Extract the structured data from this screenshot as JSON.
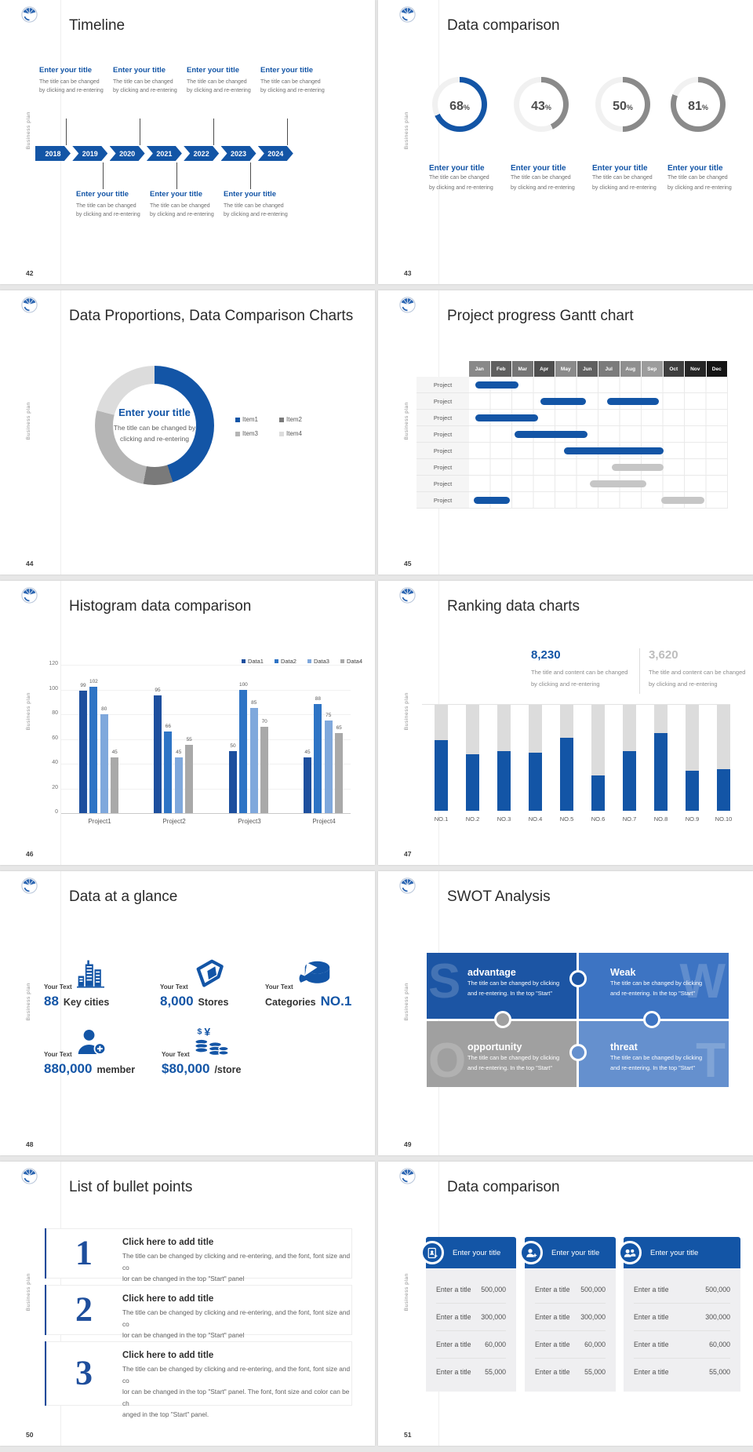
{
  "colors": {
    "brand_blue": "#1355a6",
    "gray_arc": "#8a8a8a",
    "donut_track": "#f1f1f1",
    "gantt_gray_bar": "#c6c6c6",
    "ranking_track": "#dcdcdc",
    "stat_gray": "#bdbdbd"
  },
  "common": {
    "sidebar": "Business plan",
    "logo": "brand-logo"
  },
  "slides": {
    "s42": {
      "number": "42",
      "title": "Timeline",
      "years": [
        "2018",
        "2019",
        "2020",
        "2021",
        "2022",
        "2023",
        "2024"
      ],
      "blocks_top": [
        {
          "title": "Enter your title",
          "line1": "The title can be changed",
          "line2": "by clicking and re-entering"
        },
        {
          "title": "Enter your title",
          "line1": "The title can be changed",
          "line2": "by clicking and re-entering"
        },
        {
          "title": "Enter your title",
          "line1": "The title can be changed",
          "line2": "by clicking and re-entering"
        },
        {
          "title": "Enter your title",
          "line1": "The title can be changed",
          "line2": "by clicking and re-entering"
        }
      ],
      "blocks_bottom": [
        {
          "title": "Enter your title",
          "line1": "The title can be changed",
          "line2": "by clicking and re-entering"
        },
        {
          "title": "Enter your title",
          "line1": "The title can be changed",
          "line2": "by clicking and re-entering"
        },
        {
          "title": "Enter your title",
          "line1": "The title can be changed",
          "line2": "by clicking and re-entering"
        }
      ]
    },
    "s43": {
      "number": "43",
      "title": "Data comparison",
      "items": [
        {
          "pct": 68,
          "unit": "%",
          "color": "#1355a6",
          "title": "Enter your title",
          "line1": "The title can be changed",
          "line2": "by clicking and re-entering"
        },
        {
          "pct": 43,
          "unit": "%",
          "color": "#8a8a8a",
          "title": "Enter your title",
          "line1": "The title can be changed",
          "line2": "by clicking and re-entering"
        },
        {
          "pct": 50,
          "unit": "%",
          "color": "#8a8a8a",
          "title": "Enter your title",
          "line1": "The title can be changed",
          "line2": "by clicking and re-entering"
        },
        {
          "pct": 81,
          "unit": "%",
          "color": "#8a8a8a",
          "title": "Enter your title",
          "line1": "The title can be changed",
          "line2": "by clicking and re-entering"
        }
      ]
    },
    "s44": {
      "number": "44",
      "title": "Data Proportions, Data Comparison Charts",
      "center_title": "Enter your title",
      "center_line1": "The title can be changed by",
      "center_line2": "clicking and re-entering",
      "segments": [
        {
          "label": "Item1",
          "value": 45,
          "color": "#1355a6"
        },
        {
          "label": "Item2",
          "value": 8,
          "color": "#7a7a7a"
        },
        {
          "label": "Item3",
          "value": 26,
          "color": "#b5b5b5"
        },
        {
          "label": "Item4",
          "value": 21,
          "color": "#dcdcdc"
        }
      ]
    },
    "s45": {
      "number": "45",
      "title": "Project progress Gantt chart",
      "months": [
        "Jan",
        "Feb",
        "Mar",
        "Apr",
        "May",
        "Jun",
        "Jul",
        "Aug",
        "Sep",
        "Oct",
        "Nov",
        "Dec"
      ],
      "header_colors": [
        "#898989",
        "#5f5f5f",
        "#757575",
        "#4f4f4f",
        "#8a8a8a",
        "#606060",
        "#7b7b7b",
        "#8f8f8f",
        "#9c9c9c",
        "#3f3f3f",
        "#262626",
        "#151515"
      ],
      "row_label": "Project",
      "rows": [
        {
          "bars": [
            {
              "s": 0.3,
              "e": 2.3,
              "c": "b"
            }
          ]
        },
        {
          "bars": [
            {
              "s": 3.3,
              "e": 5.4,
              "c": "b"
            },
            {
              "s": 6.4,
              "e": 8.8,
              "c": "b"
            }
          ]
        },
        {
          "bars": [
            {
              "s": 0.3,
              "e": 3.2,
              "c": "b"
            }
          ]
        },
        {
          "bars": [
            {
              "s": 2.1,
              "e": 5.5,
              "c": "b"
            }
          ]
        },
        {
          "bars": [
            {
              "s": 4.4,
              "e": 9.0,
              "c": "b"
            }
          ]
        },
        {
          "bars": [
            {
              "s": 6.6,
              "e": 9.0,
              "c": "g"
            }
          ]
        },
        {
          "bars": [
            {
              "s": 5.6,
              "e": 8.2,
              "c": "g"
            }
          ]
        },
        {
          "bars": [
            {
              "s": 0.2,
              "e": 1.9,
              "c": "b"
            },
            {
              "s": 8.9,
              "e": 10.9,
              "c": "g"
            }
          ]
        }
      ]
    },
    "s46": {
      "number": "46",
      "title": "Histogram data comparison",
      "legend": [
        "Data1",
        "Data2",
        "Data3",
        "Data4"
      ],
      "series_colors": [
        "#1d4f9e",
        "#2e74c5",
        "#7fa8dc",
        "#a9a9a9"
      ],
      "categories": [
        "Project1",
        "Project2",
        "Project3",
        "Project4"
      ],
      "values": [
        [
          99,
          102,
          80,
          45
        ],
        [
          95,
          66,
          45,
          55
        ],
        [
          50,
          100,
          85,
          70
        ],
        [
          45,
          88,
          75,
          65
        ]
      ],
      "yticks": [
        0,
        20,
        40,
        60,
        80,
        100,
        120
      ],
      "ymax": 120
    },
    "s47": {
      "number": "47",
      "title": "Ranking data charts",
      "stat1": {
        "value": "8,230",
        "line1": "The title and content can be changed",
        "line2": "by clicking and re-entering"
      },
      "stat2": {
        "value": "3,620",
        "line1": "The title and content can be changed",
        "line2": "by clicking and re-entering"
      },
      "bars": [
        {
          "label": "NO.1",
          "fill": 0.67
        },
        {
          "label": "NO.2",
          "fill": 0.53
        },
        {
          "label": "NO.3",
          "fill": 0.56
        },
        {
          "label": "NO.4",
          "fill": 0.55
        },
        {
          "label": "NO.5",
          "fill": 0.69
        },
        {
          "label": "NO.6",
          "fill": 0.33
        },
        {
          "label": "NO.7",
          "fill": 0.56
        },
        {
          "label": "NO.8",
          "fill": 0.73
        },
        {
          "label": "NO.9",
          "fill": 0.38
        },
        {
          "label": "NO.10",
          "fill": 0.39
        }
      ]
    },
    "s48": {
      "number": "48",
      "title": "Data at a glance",
      "items": [
        {
          "prefix": "Your Text",
          "value": "88",
          "label": "Key cities",
          "icon": "city-buildings-icon"
        },
        {
          "prefix": "Your Text",
          "value": "8,000",
          "label": "Stores",
          "icon": "store-icon"
        },
        {
          "prefix": "Your Text",
          "label": "Categories",
          "value": "NO.1",
          "icon": "pie-cylinder-icon"
        },
        {
          "prefix": "Your Text",
          "value": "880,000",
          "label": "member",
          "icon": "add-member-icon"
        },
        {
          "prefix": "Your Text",
          "value": "$80,000",
          "label": "/store",
          "icon": "coins-icon"
        }
      ]
    },
    "s49": {
      "number": "49",
      "title": "SWOT Analysis",
      "quadrants": [
        {
          "letter": "S",
          "title": "advantage",
          "line1": "The title can be changed by clicking",
          "line2": "and re-entering. In the top \"Start\"",
          "color": "#1c55a4"
        },
        {
          "letter": "W",
          "title": "Weak",
          "line1": "The title can be changed by clicking",
          "line2": "and re-entering. In the top \"Start\"",
          "color": "#3d74c3"
        },
        {
          "letter": "O",
          "title": "opportunity",
          "line1": "The title can be changed by clicking",
          "line2": "and re-entering. In the top \"Start\"",
          "color": "#a0a0a0"
        },
        {
          "letter": "T",
          "title": "threat",
          "line1": "The title can be changed by clicking",
          "line2": "and re-entering. In the top \"Start\"",
          "color": "#6590ce"
        }
      ]
    },
    "s50": {
      "number": "50",
      "title": "List of bullet points",
      "items": [
        {
          "num": "1",
          "title": "Click here to add title",
          "line1": "The title can be changed by clicking and re-entering, and the font, font size and co",
          "line2": "lor can be changed in the top \"Start\" panel"
        },
        {
          "num": "2",
          "title": "Click here to add title",
          "line1": "The title can be changed by clicking and re-entering, and the font, font size and co",
          "line2": "lor can be changed in the top \"Start\" panel"
        },
        {
          "num": "3",
          "title": "Click here to add title",
          "line1": "The title can be changed by clicking and re-entering, and the font, font size and co",
          "line2": "lor can be changed in the top \"Start\" panel. The font, font size and color can be ch",
          "line3": "anged in the top \"Start\" panel."
        }
      ]
    },
    "s51": {
      "number": "51",
      "title": "Data comparison",
      "cards": [
        {
          "title": "Enter your title",
          "icon": "id-card-icon",
          "rows": [
            [
              "Enter a title",
              "500,000"
            ],
            [
              "Enter a title",
              "300,000"
            ],
            [
              "Enter a title",
              "60,000"
            ],
            [
              "Enter a title",
              "55,000"
            ]
          ]
        },
        {
          "title": "Enter your title",
          "icon": "add-person-icon",
          "rows": [
            [
              "Enter a title",
              "500,000"
            ],
            [
              "Enter a title",
              "300,000"
            ],
            [
              "Enter a title",
              "60,000"
            ],
            [
              "Enter a title",
              "55,000"
            ]
          ]
        },
        {
          "title": "Enter your title",
          "icon": "people-icon",
          "rows": [
            [
              "Enter a title",
              "500,000"
            ],
            [
              "Enter a title",
              "300,000"
            ],
            [
              "Enter a title",
              "60,000"
            ],
            [
              "Enter a title",
              "55,000"
            ]
          ]
        }
      ]
    }
  },
  "chart_data": [
    {
      "type": "pie",
      "slide": "43",
      "title": "Data comparison",
      "values": [
        68,
        43,
        50,
        81
      ],
      "unit": "%"
    },
    {
      "type": "pie",
      "slide": "44",
      "title": "Data Proportions, Data Comparison Charts",
      "labels": [
        "Item1",
        "Item2",
        "Item3",
        "Item4"
      ],
      "values": [
        45,
        8,
        26,
        21
      ]
    },
    {
      "type": "gantt",
      "slide": "45",
      "x": [
        "Jan",
        "Feb",
        "Mar",
        "Apr",
        "May",
        "Jun",
        "Jul",
        "Aug",
        "Sep",
        "Oct",
        "Nov",
        "Dec"
      ],
      "rows": 8
    },
    {
      "type": "bar",
      "slide": "46",
      "title": "Histogram data comparison",
      "categories": [
        "Project1",
        "Project2",
        "Project3",
        "Project4"
      ],
      "series": [
        {
          "name": "Data1",
          "values": [
            99,
            95,
            50,
            45
          ]
        },
        {
          "name": "Data2",
          "values": [
            102,
            66,
            100,
            88
          ]
        },
        {
          "name": "Data3",
          "values": [
            80,
            45,
            85,
            75
          ]
        },
        {
          "name": "Data4",
          "values": [
            45,
            55,
            70,
            65
          ]
        }
      ],
      "ylim": [
        0,
        120
      ],
      "legend_position": "top-right"
    },
    {
      "type": "bar",
      "slide": "47",
      "title": "Ranking data charts",
      "categories": [
        "NO.1",
        "NO.2",
        "NO.3",
        "NO.4",
        "NO.5",
        "NO.6",
        "NO.7",
        "NO.8",
        "NO.9",
        "NO.10"
      ],
      "values": [
        0.67,
        0.53,
        0.56,
        0.55,
        0.69,
        0.33,
        0.56,
        0.73,
        0.38,
        0.39
      ],
      "annotations": [
        "8,230",
        "3,620"
      ]
    }
  ]
}
